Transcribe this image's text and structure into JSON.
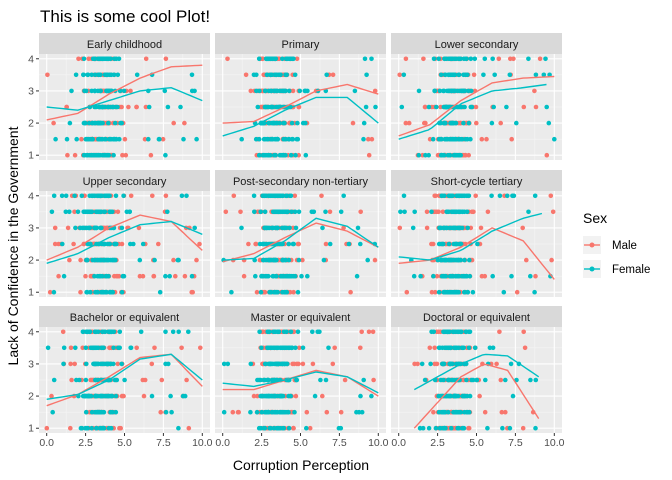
{
  "chart_data": {
    "type": "scatter",
    "title": "This is some cool Plot!",
    "xlabel": "Corruption Perception",
    "ylabel": "Lack of Confidence in the Government",
    "xlim": [
      0,
      10
    ],
    "ylim": [
      1,
      4
    ],
    "x_ticks": [
      0,
      2.5,
      5,
      7.5,
      10
    ],
    "x_tick_labels": [
      "0.0",
      "2.5",
      "5.0",
      "7.5",
      "10.0"
    ],
    "y_ticks": [
      1,
      2,
      3,
      4
    ],
    "y_tick_labels": [
      "1",
      "2",
      "3",
      "4"
    ],
    "grid": true,
    "legend": {
      "title": "Sex",
      "placement": "right"
    },
    "series_styles": [
      {
        "name": "Male",
        "color": "#F8766D"
      },
      {
        "name": "Female",
        "color": "#00BFC4"
      }
    ],
    "facets": [
      {
        "label": "Early childhood",
        "x_range": [
          0,
          10
        ],
        "smooth": {
          "Male": {
            "x": [
              0,
              2,
              4,
              6,
              8,
              10
            ],
            "y": [
              2.1,
              2.3,
              2.9,
              3.4,
              3.75,
              3.8
            ]
          },
          "Female": {
            "x": [
              0,
              2,
              4,
              6,
              8,
              10
            ],
            "y": [
              2.5,
              2.4,
              2.7,
              3.0,
              3.1,
              2.7
            ]
          }
        }
      },
      {
        "label": "Primary",
        "x_range": [
          0,
          10
        ],
        "smooth": {
          "Male": {
            "x": [
              0,
              2,
              4,
              6,
              8,
              10
            ],
            "y": [
              2.0,
              2.05,
              2.5,
              3.0,
              3.2,
              2.9
            ]
          },
          "Female": {
            "x": [
              0,
              2,
              4,
              6,
              8,
              10
            ],
            "y": [
              1.6,
              1.9,
              2.4,
              2.8,
              2.8,
              2.0
            ]
          }
        }
      },
      {
        "label": "Lower secondary",
        "x_range": [
          0,
          10
        ],
        "smooth": {
          "Male": {
            "x": [
              0,
              2,
              4,
              6,
              8,
              10
            ],
            "y": [
              1.6,
              1.95,
              2.7,
              3.25,
              3.4,
              3.45
            ]
          },
          "Female": {
            "x": [
              0,
              2,
              4,
              6,
              8,
              9.5
            ],
            "y": [
              1.5,
              1.8,
              2.6,
              3.0,
              3.1,
              3.2
            ]
          }
        }
      },
      {
        "label": "Upper secondary",
        "x_range": [
          0,
          10
        ],
        "smooth": {
          "Male": {
            "x": [
              0,
              2,
              4,
              6,
              8,
              10
            ],
            "y": [
              2.0,
              2.4,
              3.0,
              3.4,
              3.2,
              2.3
            ]
          },
          "Female": {
            "x": [
              0,
              2,
              4,
              6,
              8,
              10
            ],
            "y": [
              1.9,
              2.2,
              2.7,
              3.1,
              3.2,
              2.8
            ]
          }
        }
      },
      {
        "label": "Post-secondary non-tertiary",
        "x_range": [
          0,
          10
        ],
        "smooth": {
          "Male": {
            "x": [
              0,
              2,
              4,
              6,
              8,
              10
            ],
            "y": [
              1.95,
              2.2,
              2.7,
              3.15,
              2.9,
              2.4
            ]
          },
          "Female": {
            "x": [
              0,
              2,
              4,
              6,
              8,
              10
            ],
            "y": [
              2.0,
              2.05,
              2.6,
              3.3,
              3.05,
              2.4
            ]
          }
        }
      },
      {
        "label": "Short-cycle tertiary",
        "x_range": [
          0,
          10
        ],
        "smooth": {
          "Male": {
            "x": [
              0,
              2,
              4,
              6,
              8,
              10
            ],
            "y": [
              1.9,
              2.0,
              2.4,
              3.0,
              2.6,
              1.4
            ]
          },
          "Female": {
            "x": [
              0,
              2,
              4,
              6,
              8,
              9.2
            ],
            "y": [
              2.1,
              2.0,
              2.3,
              2.9,
              3.3,
              3.45
            ]
          }
        }
      },
      {
        "label": "Bachelor or equivalent",
        "x_range": [
          0,
          10
        ],
        "smooth": {
          "Male": {
            "x": [
              0,
              2,
              4,
              6,
              8,
              10
            ],
            "y": [
              1.7,
              2.05,
              2.6,
              3.2,
              3.3,
              2.3
            ]
          },
          "Female": {
            "x": [
              0,
              2,
              4,
              6,
              8,
              10
            ],
            "y": [
              1.9,
              2.05,
              2.5,
              3.15,
              3.3,
              2.5
            ]
          }
        }
      },
      {
        "label": "Master or equivalent",
        "x_range": [
          0,
          10
        ],
        "smooth": {
          "Male": {
            "x": [
              0,
              2,
              4,
              6,
              8,
              10
            ],
            "y": [
              2.2,
              2.2,
              2.5,
              2.8,
              2.6,
              2.0
            ]
          },
          "Female": {
            "x": [
              0,
              2,
              4,
              6,
              8,
              10
            ],
            "y": [
              2.4,
              2.3,
              2.5,
              2.75,
              2.6,
              2.1
            ]
          }
        }
      },
      {
        "label": "Doctoral or equivalent",
        "x_range": [
          1,
          9
        ],
        "smooth": {
          "Male": {
            "x": [
              1,
              2.5,
              4,
              5.5,
              7,
              9
            ],
            "y": [
              1.0,
              1.8,
              2.6,
              3.0,
              2.8,
              1.3
            ]
          },
          "Female": {
            "x": [
              1,
              2.5,
              4,
              5.5,
              7,
              9
            ],
            "y": [
              2.2,
              2.6,
              3.0,
              3.3,
              3.25,
              2.6
            ]
          }
        }
      }
    ]
  }
}
